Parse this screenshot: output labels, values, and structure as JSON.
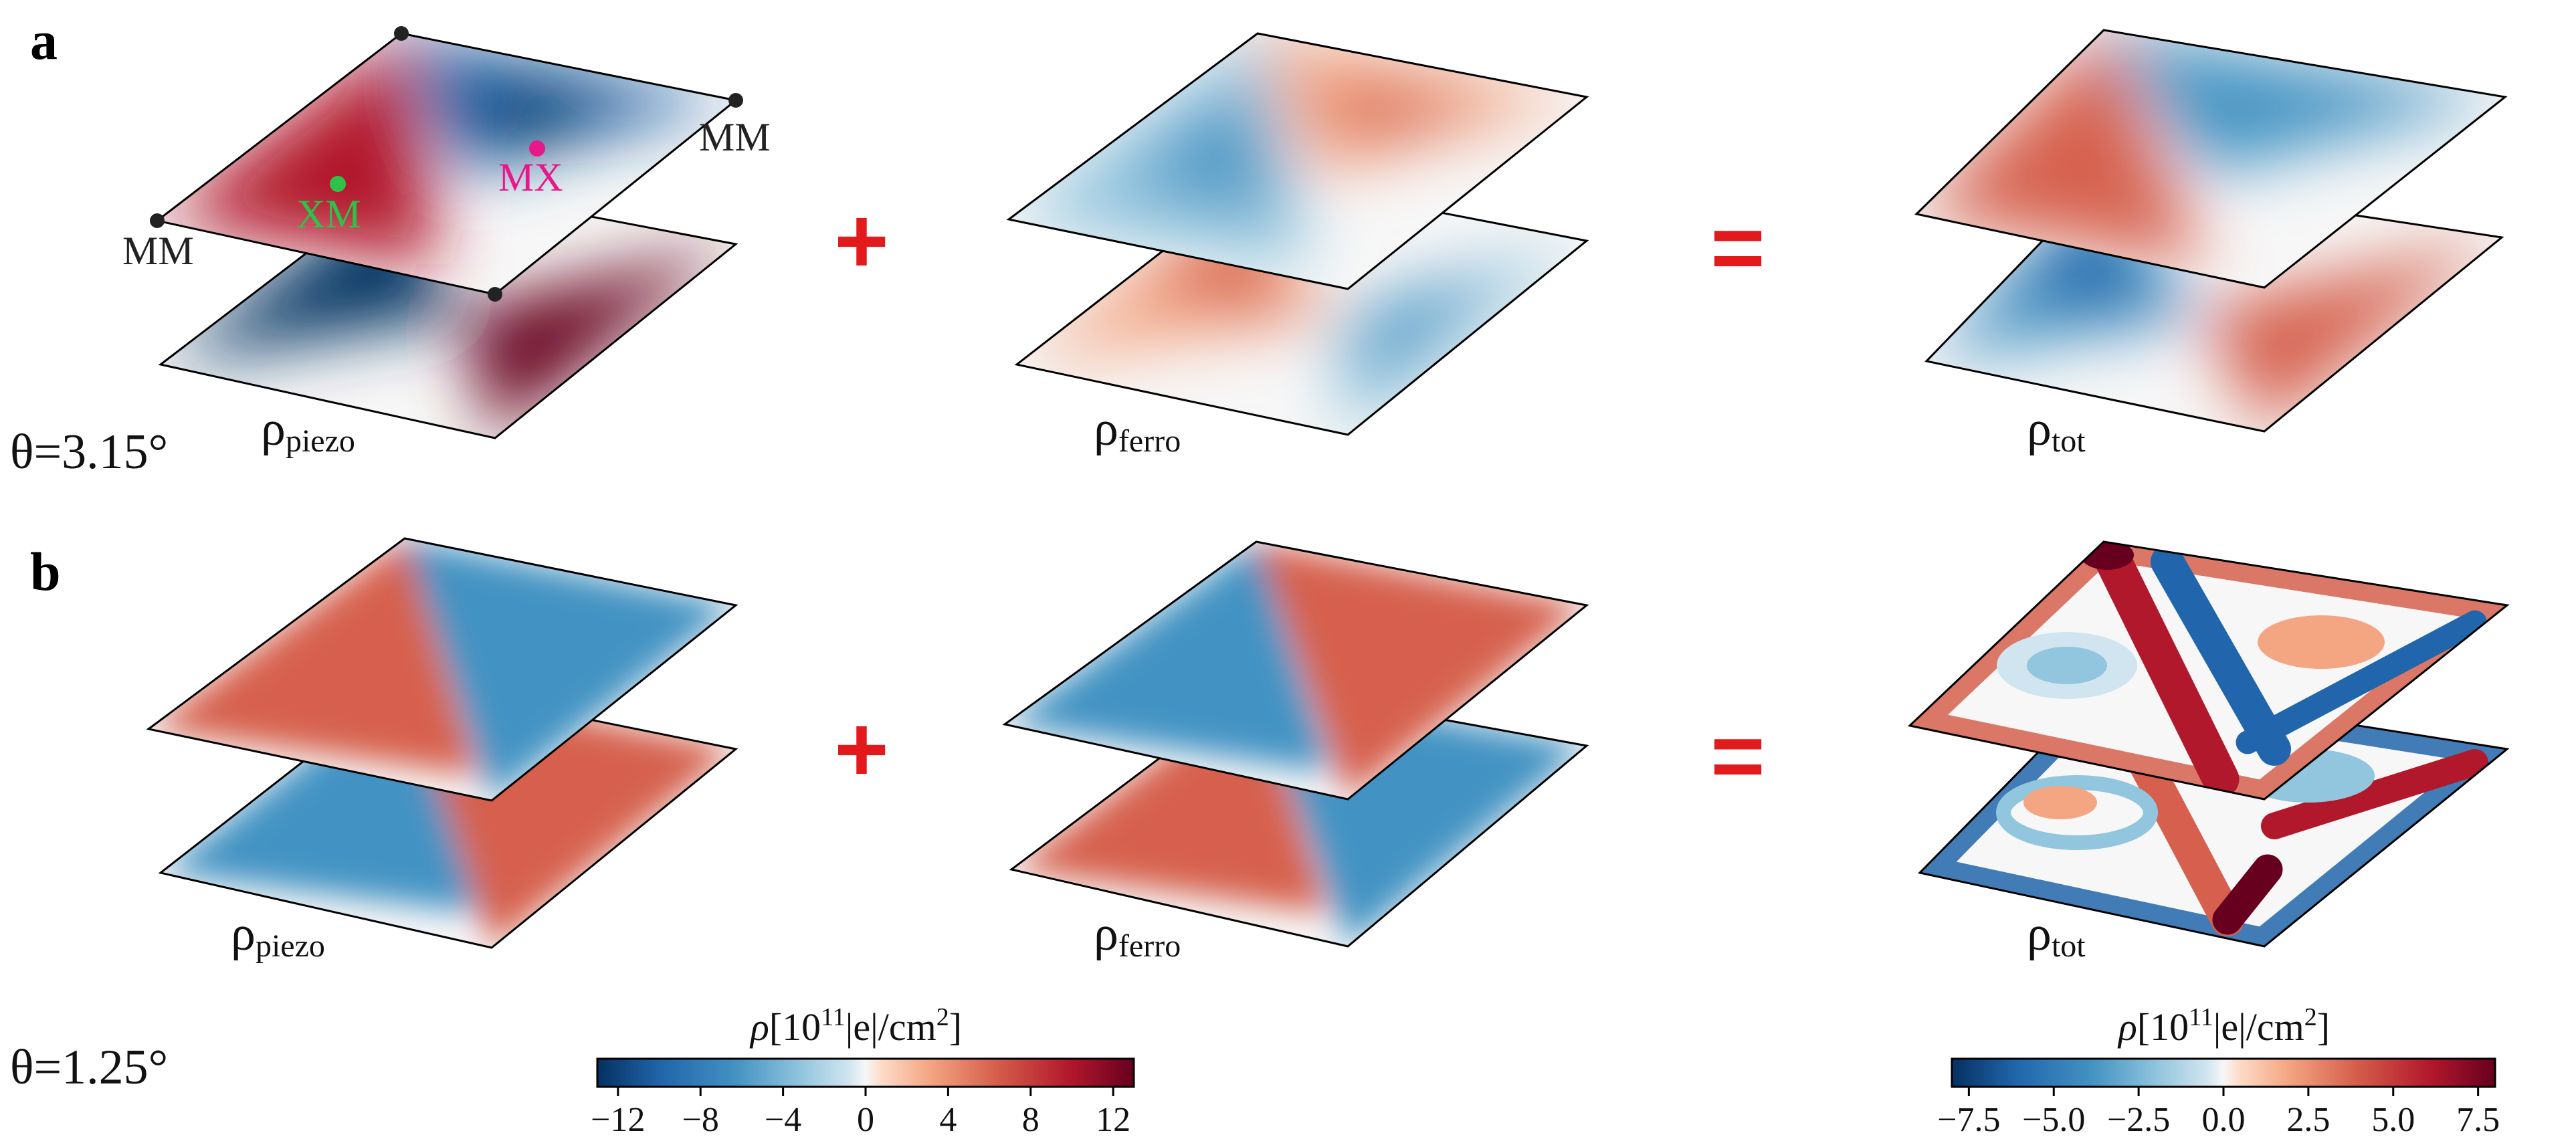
{
  "colors": {
    "red": "#b2182b",
    "blue": "#2166ac",
    "operator": "#e31a1c",
    "xm_marker": "#2ec24a",
    "mx_marker": "#e8178a",
    "vertex_marker": "#222222"
  },
  "panel_a": {
    "label": "a",
    "angle": "θ=3.15°",
    "plus": "+",
    "equals": "=",
    "piezo_label": "ρ",
    "piezo_sub": "piezo",
    "ferro_label": "ρ",
    "ferro_sub": "ferro",
    "tot_label": "ρ",
    "tot_sub": "tot",
    "site_xm": "XM",
    "site_mx": "MX",
    "site_mm_left": "MM",
    "site_mm_right": "MM"
  },
  "panel_b": {
    "label": "b",
    "angle": "θ=1.25°",
    "plus": "+",
    "equals": "=",
    "piezo_label": "ρ",
    "piezo_sub": "piezo",
    "ferro_label": "ρ",
    "ferro_sub": "ferro",
    "tot_label": "ρ",
    "tot_sub": "tot"
  },
  "colorbar_left": {
    "title_rho": "ρ",
    "title_open": "[10",
    "title_exp": "11",
    "title_unit": "|e|/cm",
    "title_unit_exp": "2",
    "title_close": "]",
    "range": [
      -13,
      13
    ],
    "ticks": [
      "−12",
      "−8",
      "−4",
      "0",
      "4",
      "8",
      "12"
    ],
    "tick_values": [
      -12,
      -8,
      -4,
      0,
      4,
      8,
      12
    ]
  },
  "colorbar_right": {
    "title_rho": "ρ",
    "title_open": "[10",
    "title_exp": "11",
    "title_unit": "|e|/cm",
    "title_unit_exp": "2",
    "title_close": "]",
    "range": [
      -8,
      8
    ],
    "ticks": [
      "−7.5",
      "−5.0",
      "−2.5",
      "0.0",
      "2.5",
      "5.0",
      "7.5"
    ],
    "tick_values": [
      -7.5,
      -5.0,
      -2.5,
      0.0,
      2.5,
      5.0,
      7.5
    ]
  }
}
